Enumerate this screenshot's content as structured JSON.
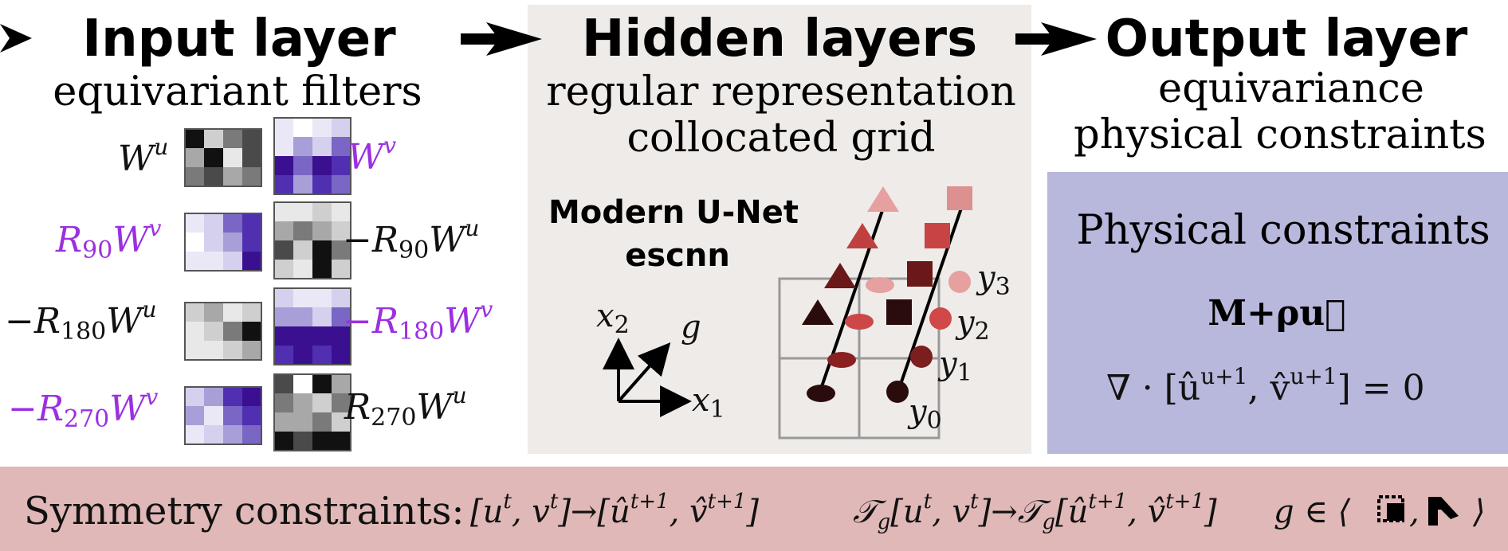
{
  "input": {
    "title": "Input layer",
    "subtitle": "equivariant  filters",
    "filters": {
      "wu": "W",
      "wv": "W",
      "r90wv": "R",
      "mr90wu": "−R",
      "mr180wu": "−R",
      "mr180wv": "−R",
      "mr270wv": "−R",
      "r270wu": "R",
      "sub90": "90",
      "sub180": "180",
      "sub270": "270",
      "u": "u",
      "v": "v"
    }
  },
  "hidden": {
    "title": "Hidden layers",
    "line1": "regular  representation",
    "line2": "collocated  grid",
    "model1": "Modern U-Net",
    "model2": "escnn",
    "axes": {
      "x2": "x",
      "x2sub": "2",
      "g": "g",
      "x1": "x",
      "x1sub": "1"
    },
    "ylabels": {
      "y": "y",
      "s0": "0",
      "s1": "1",
      "s2": "2",
      "s3": "3"
    }
  },
  "output": {
    "title": "Output layer",
    "line1": "equivariance",
    "line2": "physical  constraints",
    "box_title": "Physical  constraints",
    "formula": "M+ρu⃗",
    "divergence": "∇ · [û",
    "div_sup1": "u+1",
    "div_mid": ", v̂",
    "div_sup2": "u+1",
    "div_end": "] = 0"
  },
  "bar": {
    "label": "Symmetry  constraints:",
    "eq1": "[u",
    "eq1_sup_t": "t",
    "eq1_mid": ", v",
    "eq1_arrow": "]→[û",
    "eq1_sup_t1": "t+1",
    "eq1_mid2": ", v̂",
    "eq1_end": "]",
    "eq2": "𝒯",
    "eq2_g": "g",
    "eq2_b": "[u",
    "eq2_arrow": "]→𝒯",
    "eq3": "g ∈ ⟨",
    "eq3_end": "⟩"
  },
  "colors": {
    "purple_text": "#9b30e0",
    "hidden_bg": "#efebe8",
    "output_box": "#b8b7dc",
    "bar_bg": "#dfb8b7"
  },
  "icons": [
    "arrow-right-icon",
    "rotation-icon",
    "reflection-icon"
  ]
}
